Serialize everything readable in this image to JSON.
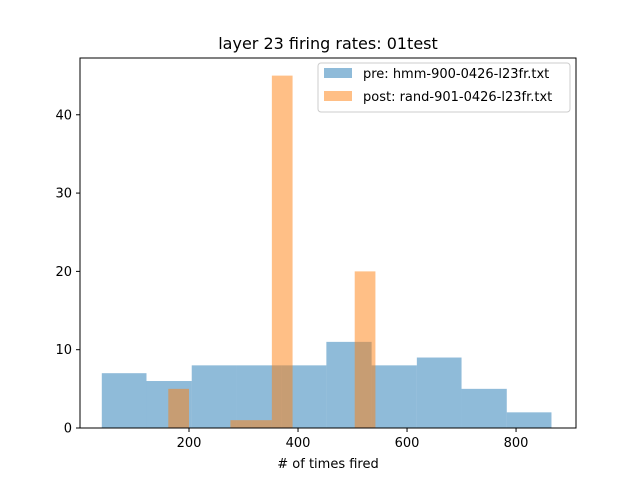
{
  "chart_data": {
    "type": "histogram",
    "title": "layer 23 firing rates: 01test",
    "xlabel": "# of times fired",
    "ylabel": "",
    "xlim": [
      0,
      910
    ],
    "ylim": [
      0,
      47.25
    ],
    "xticks": [
      200,
      400,
      600,
      800
    ],
    "yticks": [
      0,
      10,
      20,
      30,
      40
    ],
    "grid": false,
    "legend_position": "top-right",
    "series": [
      {
        "name": "pre: hmm-900-0426-l23fr.txt",
        "color": "#1f77b4",
        "alpha": 0.5,
        "bins": [
          {
            "x0": 40,
            "x1": 122,
            "count": 7
          },
          {
            "x0": 122,
            "x1": 205,
            "count": 6
          },
          {
            "x0": 205,
            "x1": 287,
            "count": 8
          },
          {
            "x0": 287,
            "x1": 370,
            "count": 8
          },
          {
            "x0": 370,
            "x1": 452,
            "count": 8
          },
          {
            "x0": 452,
            "x1": 535,
            "count": 11
          },
          {
            "x0": 535,
            "x1": 618,
            "count": 8
          },
          {
            "x0": 618,
            "x1": 700,
            "count": 9
          },
          {
            "x0": 700,
            "x1": 783,
            "count": 5
          },
          {
            "x0": 783,
            "x1": 865,
            "count": 2
          }
        ]
      },
      {
        "name": "post: rand-901-0426-l23fr.txt",
        "color": "#ff7f0e",
        "alpha": 0.5,
        "bins": [
          {
            "x0": 162,
            "x1": 200,
            "count": 5
          },
          {
            "x0": 200,
            "x1": 238,
            "count": 0
          },
          {
            "x0": 238,
            "x1": 276,
            "count": 0
          },
          {
            "x0": 276,
            "x1": 314,
            "count": 1
          },
          {
            "x0": 314,
            "x1": 352,
            "count": 1
          },
          {
            "x0": 352,
            "x1": 390,
            "count": 45
          },
          {
            "x0": 390,
            "x1": 428,
            "count": 0
          },
          {
            "x0": 428,
            "x1": 466,
            "count": 0
          },
          {
            "x0": 466,
            "x1": 504,
            "count": 0
          },
          {
            "x0": 504,
            "x1": 542,
            "count": 20
          }
        ]
      }
    ]
  }
}
